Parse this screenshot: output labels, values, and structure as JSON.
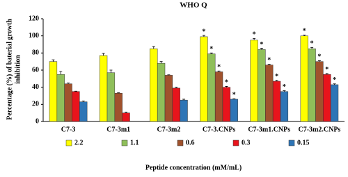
{
  "chart_data": {
    "type": "bar",
    "title": "WHO Q",
    "y_label_lines": [
      "Percentage (%) of baterial growth",
      "inhibition"
    ],
    "x_label": "Peptide concentration (mM/mL)",
    "categories": [
      "C7-3",
      "C7-3m1",
      "C7-3m2",
      "C7-3.CNPs",
      "C7-3m1.CNPs",
      "C7-3m2.CNPs"
    ],
    "series": [
      {
        "name": "2.2",
        "color": "#ffff00",
        "values": [
          70,
          77,
          85,
          99,
          95,
          100
        ],
        "errors": [
          2,
          2.5,
          2.5,
          1.5,
          2,
          1
        ]
      },
      {
        "name": "1.1",
        "color": "#8fbf5a",
        "values": [
          55,
          57,
          68,
          79,
          84,
          85
        ],
        "errors": [
          3.5,
          3,
          2,
          1,
          1.5,
          1.5
        ]
      },
      {
        "name": "0.6",
        "color": "#a0522d",
        "values": [
          44,
          33,
          54,
          58,
          66,
          70
        ],
        "errors": [
          1,
          0.5,
          0.5,
          1,
          1,
          1
        ]
      },
      {
        "name": "0.3",
        "color": "#e8141c",
        "values": [
          35,
          10,
          39,
          40,
          47,
          55
        ],
        "errors": [
          0.5,
          1,
          1,
          1,
          1,
          1
        ]
      },
      {
        "name": "0.15",
        "color": "#2e75b6",
        "values": [
          23,
          null,
          25,
          26,
          35,
          43
        ],
        "errors": [
          1,
          null,
          1,
          0.5,
          1,
          1
        ]
      }
    ],
    "significance_mark": "*",
    "significant": [
      false,
      false,
      false,
      true,
      true,
      true
    ],
    "ylim": [
      0,
      120
    ],
    "yticks": [
      0,
      20,
      40,
      60,
      80,
      100,
      120
    ]
  }
}
